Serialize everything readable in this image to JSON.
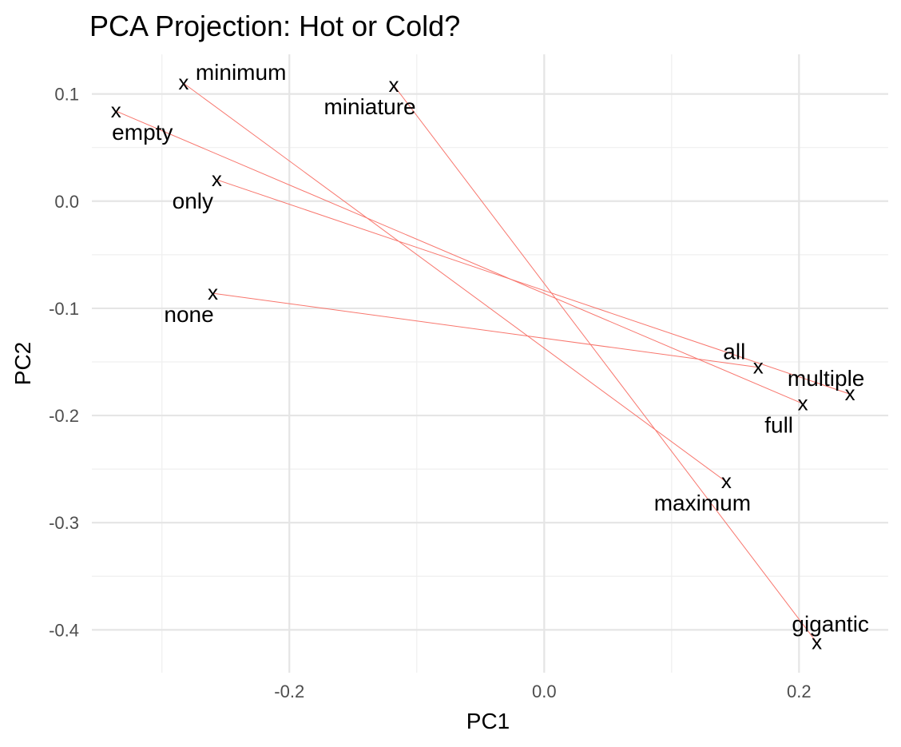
{
  "chart_data": {
    "type": "scatter",
    "title": "PCA Projection: Hot or Cold?",
    "xlabel": "PC1",
    "ylabel": "PC2",
    "xlim": [
      -0.355,
      0.27
    ],
    "ylim": [
      -0.44,
      0.137
    ],
    "x_ticks": [
      -0.2,
      0.0,
      0.2
    ],
    "x_tick_labels": [
      "-0.2",
      "0.0",
      "0.2"
    ],
    "y_ticks": [
      0.1,
      0.0,
      -0.1,
      -0.2,
      -0.3,
      -0.4
    ],
    "y_tick_labels": [
      "0.1",
      "0.0",
      "-0.1",
      "-0.2",
      "-0.3",
      "-0.4"
    ],
    "grid": true,
    "marker_symbol": "x",
    "line_color": "#f8766d",
    "points": [
      {
        "label": "minimum",
        "x": -0.283,
        "y": 0.11,
        "label_pos": "right"
      },
      {
        "label": "miniature",
        "x": -0.118,
        "y": 0.108,
        "label_pos": "below-left"
      },
      {
        "label": "empty",
        "x": -0.336,
        "y": 0.084,
        "label_pos": "below-right"
      },
      {
        "label": "only",
        "x": -0.257,
        "y": 0.02,
        "label_pos": "below-left"
      },
      {
        "label": "none",
        "x": -0.26,
        "y": -0.086,
        "label_pos": "below-left"
      },
      {
        "label": "all",
        "x": 0.168,
        "y": -0.155,
        "label_pos": "above-left"
      },
      {
        "label": "multiple",
        "x": 0.24,
        "y": -0.18,
        "label_pos": "above-left"
      },
      {
        "label": "full",
        "x": 0.203,
        "y": -0.189,
        "label_pos": "below-left"
      },
      {
        "label": "maximum",
        "x": 0.143,
        "y": -0.262,
        "label_pos": "below-left"
      },
      {
        "label": "gigantic",
        "x": 0.214,
        "y": -0.412,
        "label_pos": "above"
      }
    ],
    "pairs": [
      [
        "minimum",
        "maximum"
      ],
      [
        "miniature",
        "gigantic"
      ],
      [
        "empty",
        "full"
      ],
      [
        "only",
        "multiple"
      ],
      [
        "none",
        "all"
      ]
    ]
  }
}
